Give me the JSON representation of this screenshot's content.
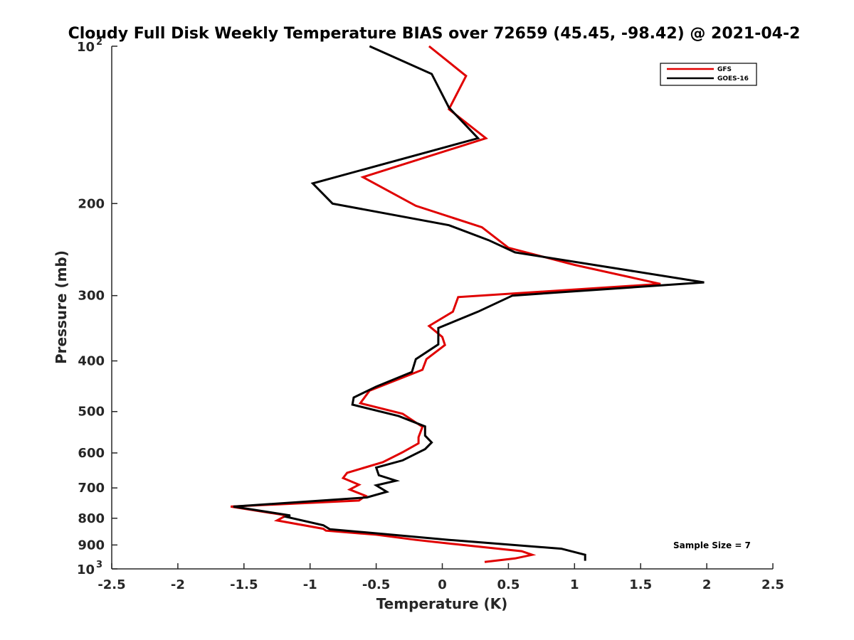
{
  "chart_data": {
    "type": "line",
    "title": "Cloudy Full Disk Weekly Temperature BIAS over 72659 (45.45, -98.42) @ 2021-04-2",
    "xlabel": "Temperature (K)",
    "ylabel": "Pressure (mb)",
    "xlim": [
      -2.5,
      2.5
    ],
    "ylim": [
      100,
      1000
    ],
    "yscale": "log",
    "yreversed": true,
    "xticks": [
      -2.5,
      -2,
      -1.5,
      -1,
      -0.5,
      0,
      0.5,
      1,
      1.5,
      2,
      2.5
    ],
    "xtick_labels": [
      "-2.5",
      "-2",
      "-1.5",
      "-1",
      "-0.5",
      "0",
      "0.5",
      "1",
      "1.5",
      "2",
      "2.5"
    ],
    "yticks": [
      {
        "value": 100,
        "base": "10",
        "exp": "2"
      },
      {
        "value": 200,
        "label": "200"
      },
      {
        "value": 300,
        "label": "300"
      },
      {
        "value": 400,
        "label": "400"
      },
      {
        "value": 500,
        "label": "500"
      },
      {
        "value": 600,
        "label": "600"
      },
      {
        "value": 700,
        "label": "700"
      },
      {
        "value": 800,
        "label": "800"
      },
      {
        "value": 900,
        "label": "900"
      },
      {
        "value": 1000,
        "base": "10",
        "exp": "3"
      }
    ],
    "legend_position": "top-right",
    "annotation": "Sample Size = 7",
    "series": [
      {
        "name": "GFS",
        "color": "#e00000",
        "points": [
          [
            -0.1,
            100
          ],
          [
            0.18,
            114
          ],
          [
            0.05,
            132
          ],
          [
            0.33,
            150
          ],
          [
            -0.6,
            178
          ],
          [
            -0.2,
            202
          ],
          [
            0.3,
            222
          ],
          [
            0.5,
            243
          ],
          [
            1.0,
            262
          ],
          [
            1.65,
            285
          ],
          [
            0.12,
            302
          ],
          [
            0.08,
            322
          ],
          [
            -0.1,
            343
          ],
          [
            0.0,
            360
          ],
          [
            0.02,
            373
          ],
          [
            -0.12,
            397
          ],
          [
            -0.15,
            416
          ],
          [
            -0.55,
            456
          ],
          [
            -0.62,
            482
          ],
          [
            -0.3,
            505
          ],
          [
            -0.15,
            535
          ],
          [
            -0.18,
            560
          ],
          [
            -0.18,
            575
          ],
          [
            -0.3,
            598
          ],
          [
            -0.45,
            625
          ],
          [
            -0.72,
            655
          ],
          [
            -0.75,
            670
          ],
          [
            -0.63,
            690
          ],
          [
            -0.7,
            705
          ],
          [
            -0.58,
            725
          ],
          [
            -0.63,
            740
          ],
          [
            -1.6,
            760
          ],
          [
            -1.18,
            790
          ],
          [
            -1.25,
            808
          ],
          [
            -0.9,
            838
          ],
          [
            -0.88,
            845
          ],
          [
            -0.5,
            860
          ],
          [
            -0.2,
            880
          ],
          [
            0.1,
            897
          ],
          [
            0.6,
            925
          ],
          [
            0.68,
            940
          ],
          [
            0.55,
            955
          ],
          [
            0.32,
            970
          ]
        ]
      },
      {
        "name": "GOES-16",
        "color": "#000000",
        "points": [
          [
            -0.55,
            100
          ],
          [
            -0.08,
            113
          ],
          [
            0.05,
            131
          ],
          [
            0.27,
            150
          ],
          [
            -0.98,
            183
          ],
          [
            -0.83,
            200
          ],
          [
            0.05,
            220
          ],
          [
            0.35,
            235
          ],
          [
            0.55,
            248
          ],
          [
            1.98,
            283
          ],
          [
            0.53,
            300
          ],
          [
            0.27,
            322
          ],
          [
            -0.03,
            346
          ],
          [
            -0.03,
            372
          ],
          [
            -0.2,
            397
          ],
          [
            -0.23,
            420
          ],
          [
            -0.5,
            448
          ],
          [
            -0.67,
            470
          ],
          [
            -0.68,
            485
          ],
          [
            -0.33,
            510
          ],
          [
            -0.13,
            534
          ],
          [
            -0.13,
            556
          ],
          [
            -0.08,
            573
          ],
          [
            -0.13,
            590
          ],
          [
            -0.3,
            620
          ],
          [
            -0.5,
            640
          ],
          [
            -0.48,
            662
          ],
          [
            -0.35,
            678
          ],
          [
            -0.5,
            692
          ],
          [
            -0.42,
            712
          ],
          [
            -0.57,
            730
          ],
          [
            -1.58,
            760
          ],
          [
            -1.15,
            790
          ],
          [
            -1.18,
            795
          ],
          [
            -0.9,
            825
          ],
          [
            -0.85,
            840
          ],
          [
            -0.43,
            858
          ],
          [
            0.05,
            880
          ],
          [
            0.9,
            915
          ],
          [
            1.08,
            940
          ],
          [
            1.08,
            965
          ]
        ]
      }
    ]
  },
  "legend": {
    "items": [
      {
        "label": "GFS",
        "color": "#e00000"
      },
      {
        "label": "GOES-16",
        "color": "#000000"
      }
    ]
  }
}
